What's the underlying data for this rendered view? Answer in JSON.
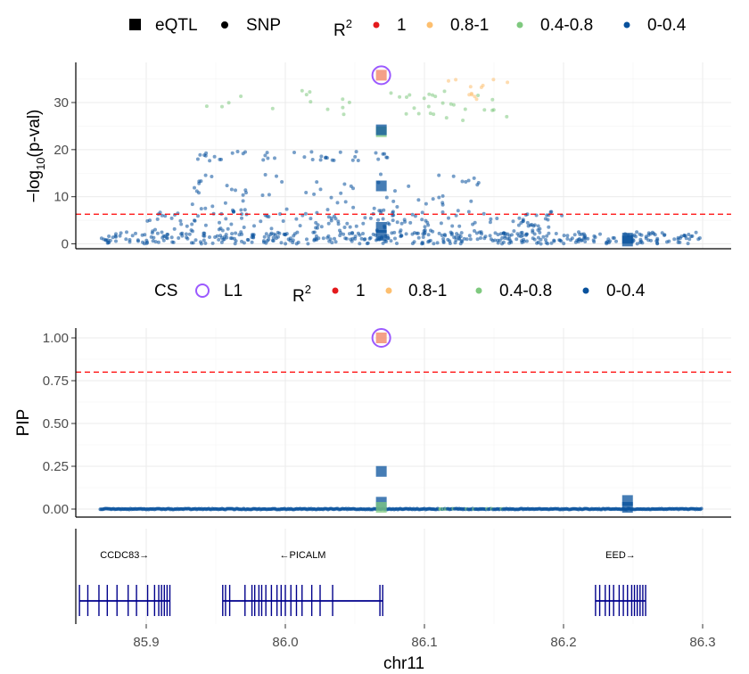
{
  "colors": {
    "r2_1": "#e41a1c",
    "r2_08_1": "#fdbf6f",
    "r2_04_08": "#7fc97f",
    "r2_0_04": "#08519c",
    "credible_set": "#9b59ff",
    "threshold": "#ff0000",
    "gene": "#00008b",
    "lead": "#f08060"
  },
  "legend_top": {
    "shape_items": [
      {
        "label": "eQTL",
        "icon": "square-icon"
      },
      {
        "label": "SNP",
        "icon": "circle-icon"
      }
    ],
    "r2_title": "R",
    "r2_sup": "2",
    "r2_items": [
      {
        "label": "1",
        "color_key": "r2_1"
      },
      {
        "label": "0.8-1",
        "color_key": "r2_08_1"
      },
      {
        "label": "0.4-0.8",
        "color_key": "r2_04_08"
      },
      {
        "label": "0-0.4",
        "color_key": "r2_0_04"
      }
    ]
  },
  "legend_mid": {
    "cs_title": "CS",
    "cs_label": "L1",
    "r2_title": "R",
    "r2_sup": "2",
    "r2_items": [
      {
        "label": "1",
        "color_key": "r2_1"
      },
      {
        "label": "0.8-1",
        "color_key": "r2_08_1"
      },
      {
        "label": "0.4-0.8",
        "color_key": "r2_04_08"
      },
      {
        "label": "0-0.4",
        "color_key": "r2_0_04"
      }
    ]
  },
  "chart_data": [
    {
      "type": "scatter",
      "panel": "association",
      "ylabel_prefix": "−log",
      "ylabel_sub": "10",
      "ylabel_suffix": "(p-val)",
      "xlim": [
        85.85,
        86.3
      ],
      "ylim": [
        0,
        37
      ],
      "yticks": [
        0,
        10,
        20,
        30
      ],
      "threshold": 6.3,
      "grid": true,
      "bands": [
        {
          "r2": "r2_0_04",
          "x_range": [
            85.867,
            86.3
          ],
          "y_range": [
            0,
            2.5
          ],
          "n": 420
        },
        {
          "r2": "r2_0_04",
          "x_range": [
            85.9,
            86.2
          ],
          "y_range": [
            2.5,
            7
          ],
          "n": 150
        },
        {
          "r2": "r2_0_04",
          "x_range": [
            85.93,
            86.15
          ],
          "y_range": [
            7,
            15
          ],
          "n": 70
        },
        {
          "r2": "r2_0_04",
          "x_range": [
            85.925,
            86.075
          ],
          "y_range": [
            17.6,
            19.6
          ],
          "n": 40
        },
        {
          "r2": "r2_04_08",
          "x_range": [
            85.94,
            86.15
          ],
          "y_range": [
            27.5,
            33
          ],
          "n": 35
        },
        {
          "r2": "r2_04_08",
          "x_range": [
            86.1,
            86.16
          ],
          "y_range": [
            26,
            29
          ],
          "n": 6
        },
        {
          "r2": "r2_08_1",
          "x_range": [
            86.1,
            86.16
          ],
          "y_range": [
            29,
            35.5
          ],
          "n": 12
        }
      ],
      "eqtl": [
        {
          "x": 86.069,
          "y": 35.8,
          "r2": "lead",
          "cs": true
        },
        {
          "x": 86.069,
          "y": 23.8,
          "r2": "r2_04_08"
        },
        {
          "x": 86.069,
          "y": 24.2,
          "r2": "r2_0_04"
        },
        {
          "x": 86.069,
          "y": 12.3,
          "r2": "r2_0_04"
        },
        {
          "x": 86.069,
          "y": 3.5,
          "r2": "r2_0_04"
        },
        {
          "x": 86.069,
          "y": 1.8,
          "r2": "r2_0_04"
        },
        {
          "x": 86.246,
          "y": 1.2,
          "r2": "r2_0_04"
        },
        {
          "x": 86.246,
          "y": 0.6,
          "r2": "r2_0_04"
        }
      ]
    },
    {
      "type": "scatter",
      "panel": "fine-mapping",
      "ylabel": "PIP",
      "xlim": [
        85.85,
        86.3
      ],
      "ylim": [
        0,
        1.05
      ],
      "yticks": [
        0,
        0.25,
        0.5,
        0.75,
        1.0
      ],
      "ytick_labels": [
        "0.00",
        "0.25",
        "0.50",
        "0.75",
        "1.00"
      ],
      "threshold": 0.8,
      "grid": true,
      "baseline": {
        "x_range": [
          85.867,
          86.3
        ],
        "y": 0,
        "n": 500
      },
      "eqtl": [
        {
          "x": 86.069,
          "y": 1.0,
          "r2": "lead",
          "cs": true
        },
        {
          "x": 86.069,
          "y": 0.22,
          "r2": "r2_0_04"
        },
        {
          "x": 86.069,
          "y": 0.04,
          "r2": "r2_0_04"
        },
        {
          "x": 86.069,
          "y": 0.01,
          "r2": "r2_04_08"
        },
        {
          "x": 86.246,
          "y": 0.05,
          "r2": "r2_0_04"
        },
        {
          "x": 86.246,
          "y": 0.01,
          "r2": "r2_0_04"
        }
      ]
    },
    {
      "type": "gene-track",
      "xlabel": "chr11",
      "xlim": [
        85.85,
        86.3
      ],
      "xticks": [
        85.9,
        86.0,
        86.1,
        86.2,
        86.3
      ],
      "xtick_labels": [
        "85.9",
        "86.0",
        "86.1",
        "86.2",
        "86.3"
      ],
      "genes": [
        {
          "name": "CCDC83→",
          "start": 85.852,
          "end": 85.917,
          "exons": [
            85.852,
            85.858,
            85.866,
            85.872,
            85.879,
            85.887,
            85.893,
            85.901,
            85.906,
            85.909,
            85.911,
            85.913,
            85.915,
            85.917
          ]
        },
        {
          "name": "←PICALM",
          "start": 85.955,
          "end": 86.07,
          "exons": [
            85.955,
            85.957,
            85.96,
            85.971,
            85.976,
            85.978,
            85.981,
            85.983,
            85.986,
            85.99,
            85.994,
            85.997,
            86.0,
            86.004,
            86.008,
            86.012,
            86.019,
            86.025,
            86.034,
            86.068,
            86.07
          ]
        },
        {
          "name": "EED→",
          "start": 86.223,
          "end": 86.259,
          "exons": [
            86.223,
            86.226,
            86.23,
            86.233,
            86.236,
            86.24,
            86.243,
            86.246,
            86.249,
            86.251,
            86.253,
            86.255,
            86.257,
            86.259
          ]
        }
      ]
    }
  ]
}
